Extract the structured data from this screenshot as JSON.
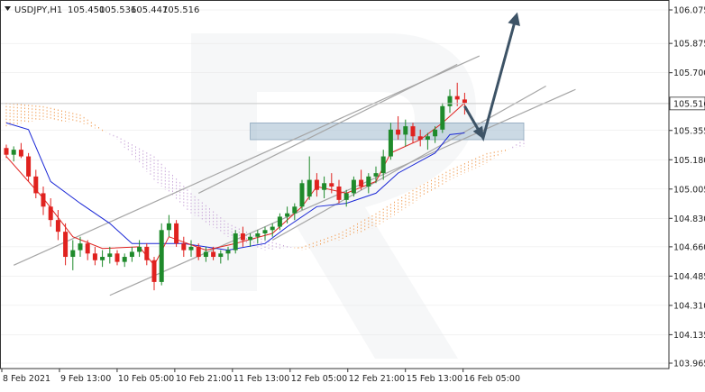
{
  "header": {
    "symbol": "USDJPY,H1",
    "ohlc": [
      "105.450",
      "105.536",
      "105.447",
      "105.516"
    ]
  },
  "colors": {
    "bull": "#1f8a2b",
    "bear": "#e0221f",
    "tenkan": "#e0221f",
    "kijun": "#1a27d6",
    "kumo_bull": "#f2a35e",
    "kumo_bear": "#c9a7d9",
    "channel": "#a6a6a6",
    "arrow": "#3d5366",
    "zone": "#a9bfd2",
    "grid": "#e6e6e6",
    "axis": "#333333",
    "current_price_line": "#c8c8c8"
  },
  "chart_data": {
    "type": "candlestick",
    "symbol": "USDJPY",
    "timeframe": "H1",
    "ylim": [
      103.965,
      106.075
    ],
    "y_ticks": [
      "106.075",
      "105.875",
      "105.700",
      "105.516",
      "105.355",
      "105.180",
      "105.005",
      "104.830",
      "104.660",
      "104.485",
      "104.310",
      "104.135",
      "103.965"
    ],
    "x_ticks": [
      "8 Feb 2021",
      "9 Feb 13:00",
      "10 Feb 05:00",
      "10 Feb 21:00",
      "11 Feb 13:00",
      "12 Feb 05:00",
      "12 Feb 21:00",
      "15 Feb 13:00",
      "16 Feb 05:00"
    ],
    "current_price": "105.516",
    "candles": [
      [
        105.25,
        105.27,
        105.19,
        105.21
      ],
      [
        105.21,
        105.26,
        105.17,
        105.24
      ],
      [
        105.24,
        105.28,
        105.19,
        105.2
      ],
      [
        105.2,
        105.22,
        105.05,
        105.08
      ],
      [
        105.08,
        105.12,
        104.95,
        104.98
      ],
      [
        104.98,
        105.02,
        104.85,
        104.9
      ],
      [
        104.9,
        104.95,
        104.78,
        104.82
      ],
      [
        104.82,
        104.88,
        104.7,
        104.75
      ],
      [
        104.75,
        104.8,
        104.55,
        104.6
      ],
      [
        104.6,
        104.7,
        104.52,
        104.64
      ],
      [
        104.64,
        104.72,
        104.6,
        104.68
      ],
      [
        104.68,
        104.7,
        104.58,
        104.62
      ],
      [
        104.62,
        104.66,
        104.55,
        104.58
      ],
      [
        104.58,
        104.64,
        104.54,
        104.6
      ],
      [
        104.6,
        104.66,
        104.56,
        104.62
      ],
      [
        104.62,
        104.64,
        104.55,
        104.57
      ],
      [
        104.57,
        104.62,
        104.54,
        104.6
      ],
      [
        104.6,
        104.66,
        104.57,
        104.63
      ],
      [
        104.63,
        104.7,
        104.6,
        104.66
      ],
      [
        104.66,
        104.68,
        104.55,
        104.58
      ],
      [
        104.58,
        104.6,
        104.4,
        104.45
      ],
      [
        104.45,
        104.8,
        104.43,
        104.76
      ],
      [
        104.76,
        104.85,
        104.72,
        104.8
      ],
      [
        104.8,
        104.82,
        104.66,
        104.68
      ],
      [
        104.68,
        104.72,
        104.6,
        104.64
      ],
      [
        104.64,
        104.7,
        104.6,
        104.66
      ],
      [
        104.66,
        104.68,
        104.58,
        104.6
      ],
      [
        104.6,
        104.66,
        104.57,
        104.63
      ],
      [
        104.63,
        104.66,
        104.58,
        104.6
      ],
      [
        104.6,
        104.64,
        104.56,
        104.62
      ],
      [
        104.62,
        104.66,
        104.58,
        104.64
      ],
      [
        104.64,
        104.76,
        104.62,
        104.74
      ],
      [
        104.74,
        104.78,
        104.66,
        104.7
      ],
      [
        104.7,
        104.74,
        104.66,
        104.72
      ],
      [
        104.72,
        104.76,
        104.68,
        104.74
      ],
      [
        104.74,
        104.78,
        104.7,
        104.76
      ],
      [
        104.76,
        104.8,
        104.72,
        104.78
      ],
      [
        104.78,
        104.86,
        104.76,
        104.84
      ],
      [
        104.84,
        104.9,
        104.8,
        104.86
      ],
      [
        104.86,
        104.92,
        104.82,
        104.9
      ],
      [
        104.9,
        105.06,
        104.88,
        105.04
      ],
      [
        104.96,
        105.2,
        104.94,
        105.06
      ],
      [
        105.06,
        105.1,
        104.96,
        105.0
      ],
      [
        105.0,
        105.08,
        104.95,
        105.04
      ],
      [
        105.04,
        105.1,
        104.98,
        105.02
      ],
      [
        105.02,
        105.06,
        104.92,
        104.94
      ],
      [
        104.94,
        105.0,
        104.9,
        104.98
      ],
      [
        104.98,
        105.08,
        104.96,
        105.06
      ],
      [
        105.06,
        105.12,
        105.0,
        105.02
      ],
      [
        105.02,
        105.1,
        104.98,
        105.08
      ],
      [
        105.08,
        105.14,
        105.04,
        105.1
      ],
      [
        105.1,
        105.24,
        105.06,
        105.2
      ],
      [
        105.2,
        105.4,
        105.18,
        105.36
      ],
      [
        105.36,
        105.44,
        105.3,
        105.33
      ],
      [
        105.33,
        105.42,
        105.26,
        105.38
      ],
      [
        105.38,
        105.4,
        105.28,
        105.32
      ],
      [
        105.32,
        105.36,
        105.26,
        105.3
      ],
      [
        105.3,
        105.34,
        105.24,
        105.32
      ],
      [
        105.32,
        105.38,
        105.28,
        105.36
      ],
      [
        105.36,
        105.52,
        105.34,
        105.5
      ],
      [
        105.5,
        105.6,
        105.46,
        105.56
      ],
      [
        105.56,
        105.64,
        105.5,
        105.54
      ],
      [
        105.54,
        105.58,
        105.45,
        105.52
      ]
    ],
    "tenkan_sen": [
      [
        0,
        105.2
      ],
      [
        5,
        104.95
      ],
      [
        9,
        104.72
      ],
      [
        13,
        104.65
      ],
      [
        18,
        104.66
      ],
      [
        20,
        104.55
      ],
      [
        22,
        104.72
      ],
      [
        27,
        104.64
      ],
      [
        31,
        104.68
      ],
      [
        36,
        104.74
      ],
      [
        40,
        104.9
      ],
      [
        42,
        105.02
      ],
      [
        46,
        104.98
      ],
      [
        50,
        105.05
      ],
      [
        52,
        105.22
      ],
      [
        56,
        105.3
      ],
      [
        59,
        105.4
      ],
      [
        62,
        105.52
      ]
    ],
    "kijun_sen": [
      [
        0,
        105.4
      ],
      [
        3,
        105.36
      ],
      [
        6,
        105.05
      ],
      [
        10,
        104.92
      ],
      [
        14,
        104.8
      ],
      [
        17,
        104.68
      ],
      [
        24,
        104.68
      ],
      [
        30,
        104.64
      ],
      [
        35,
        104.68
      ],
      [
        38,
        104.78
      ],
      [
        42,
        104.9
      ],
      [
        46,
        104.92
      ],
      [
        50,
        104.98
      ],
      [
        53,
        105.1
      ],
      [
        58,
        105.22
      ],
      [
        60,
        105.33
      ],
      [
        62,
        105.34
      ]
    ],
    "kumo": {
      "senkou_a": [
        [
          0,
          105.52
        ],
        [
          5,
          105.5
        ],
        [
          10,
          105.45
        ],
        [
          15,
          105.3
        ],
        [
          20,
          105.06
        ],
        [
          25,
          104.86
        ],
        [
          30,
          104.72
        ],
        [
          35,
          104.64
        ],
        [
          40,
          104.66
        ],
        [
          45,
          104.74
        ],
        [
          50,
          104.86
        ],
        [
          55,
          105.0
        ],
        [
          60,
          105.12
        ],
        [
          65,
          105.22
        ],
        [
          70,
          105.26
        ]
      ],
      "senkou_b": [
        [
          0,
          105.38
        ],
        [
          5,
          105.42
        ],
        [
          10,
          105.4
        ],
        [
          15,
          105.32
        ],
        [
          20,
          105.2
        ],
        [
          25,
          104.98
        ],
        [
          30,
          104.8
        ],
        [
          35,
          104.7
        ],
        [
          40,
          104.64
        ],
        [
          45,
          104.7
        ],
        [
          50,
          104.78
        ],
        [
          55,
          104.92
        ],
        [
          60,
          105.06
        ],
        [
          65,
          105.16
        ],
        [
          70,
          105.3
        ]
      ]
    },
    "channels": [
      [
        [
          1,
          104.55
        ],
        [
          64,
          105.8
        ]
      ],
      [
        [
          14,
          104.37
        ],
        [
          77,
          105.6
        ]
      ],
      [
        [
          26,
          104.98
        ],
        [
          61,
          105.75
        ]
      ],
      [
        [
          36,
          104.7
        ],
        [
          73,
          105.62
        ]
      ]
    ],
    "zone": {
      "y_high": 105.4,
      "y_low": 105.3,
      "x_start": 33,
      "x_end": 70
    },
    "forecast": [
      [
        62,
        105.5
      ],
      [
        64.5,
        105.31
      ],
      [
        69,
        106.04
      ]
    ]
  }
}
